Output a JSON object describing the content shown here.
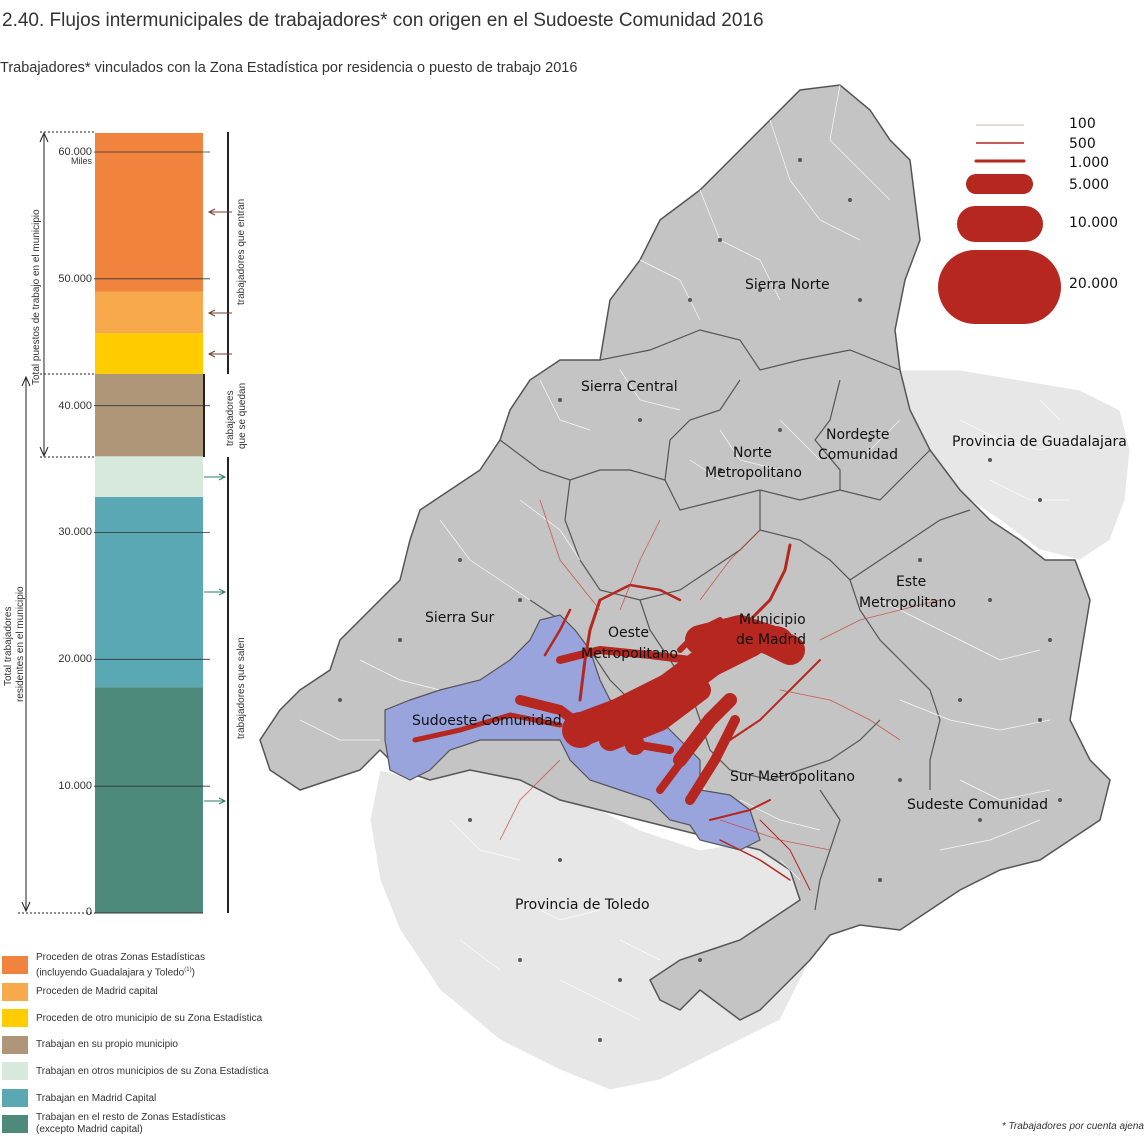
{
  "title": "2.40. Flujos intermunicipales de trabajadores* con origen en el Sudoeste Comunidad 2016",
  "subtitle": "Trabajadores* vinculados con la Zona Estadística por residencia o puesto de trabajo 2016",
  "footnote": "* Trabajadores por cuenta ajena",
  "bar_chart": {
    "unit": "Miles",
    "y_ticks": [
      "60.000",
      "50.000",
      "40.000",
      "30.000",
      "20.000",
      "10.000",
      "0"
    ],
    "left_axis_top": "Total puestos de trabajo en el municipio",
    "left_axis_bottom_line1": "Total trabajadores",
    "left_axis_bottom_line2": "residentes en el municipio",
    "right_top": "trabajadores que entran",
    "right_middle_line1": "trabajadores",
    "right_middle_line2": "que se quedan",
    "right_bottom": "trabajadores que salen",
    "segments": [
      {
        "label": "Trabajan en el resto de Zonas Estadísticas",
        "label2": "(excepto Madrid capital)",
        "color": "#4e8a7b",
        "value": 17800
      },
      {
        "label": "Trabajan en Madrid Capital",
        "color": "#5aa8b4",
        "value": 15000
      },
      {
        "label": "Trabajan en otros municipios de su Zona Estadística",
        "color": "#d6e9dc",
        "value": 3200
      },
      {
        "label": "Trabajan en su propio municipio",
        "color": "#b09678",
        "value": 6500
      },
      {
        "label": "Proceden de otro municipio de su Zona Estadística",
        "color": "#ffcc00",
        "value": 3200
      },
      {
        "label": "Proceden de Madrid capital",
        "color": "#f8a94c",
        "value": 3300
      },
      {
        "label": "Proceden de otras Zonas Estadísticas",
        "label2": "(incluyendo Guadalajara y Toledo",
        "label2_sup": "(1)",
        "label2_end": ")",
        "color": "#f0843f",
        "value": 12500
      }
    ]
  },
  "map": {
    "regions": [
      {
        "name": "Sierra Norte"
      },
      {
        "name": "Sierra Central"
      },
      {
        "name": "Norte",
        "name2": "Metropolitano"
      },
      {
        "name": "Nordeste",
        "name2": "Comunidad"
      },
      {
        "name": "Provincia de Guadalajara"
      },
      {
        "name": "Este",
        "name2": "Metropolitano"
      },
      {
        "name": "Municipio",
        "name2": "de Madrid"
      },
      {
        "name": "Oeste",
        "name2": "Metropolitano"
      },
      {
        "name": "Sierra Sur"
      },
      {
        "name": "Sudoeste Comunidad"
      },
      {
        "name": "Sur Metropolitano"
      },
      {
        "name": "Sudeste Comunidad"
      },
      {
        "name": "Provincia de Toledo"
      }
    ],
    "flow_scale": [
      "100",
      "500",
      "1.000",
      "5.000",
      "10.000",
      "20.000"
    ],
    "colors": {
      "flow": "#b5271f",
      "highlight_zone": "#9aa4dc",
      "madrid_region": "#c4c4c4",
      "outside": "#e6e6e6"
    }
  }
}
